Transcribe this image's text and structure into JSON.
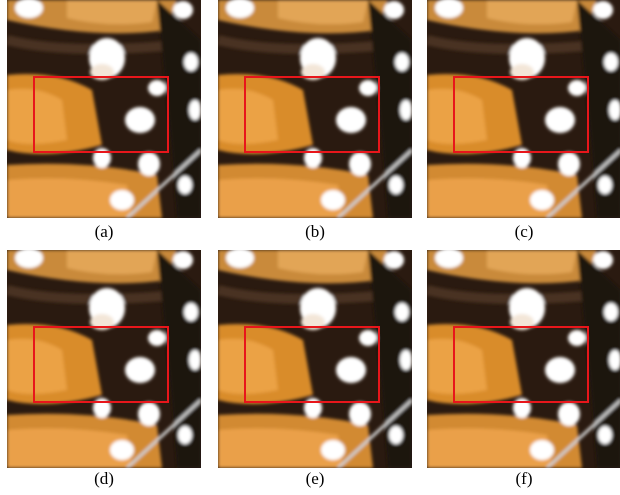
{
  "panels": [
    {
      "caption": "(a)"
    },
    {
      "caption": "(b)"
    },
    {
      "caption": "(c)"
    },
    {
      "caption": "(d)"
    },
    {
      "caption": "(e)"
    },
    {
      "caption": "(f)"
    }
  ]
}
